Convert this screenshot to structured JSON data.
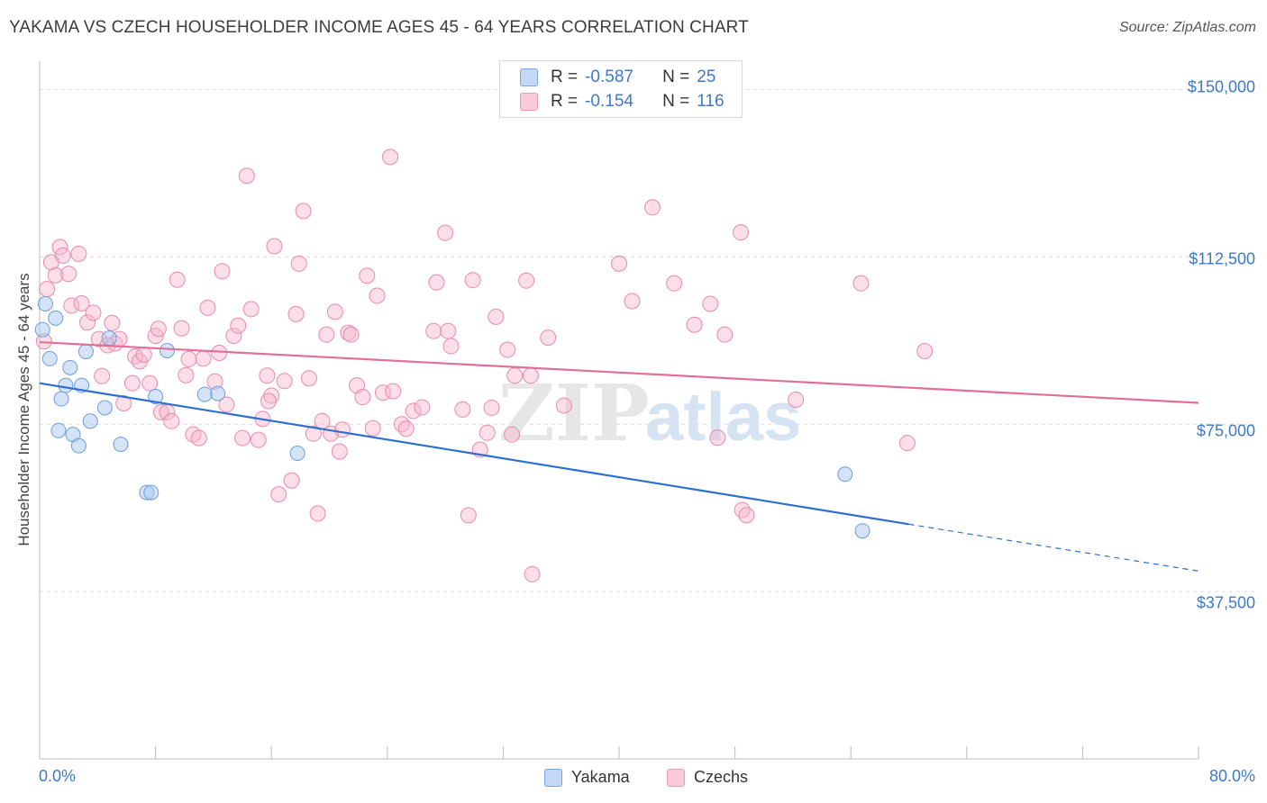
{
  "header": {
    "title": "YAKAMA VS CZECH HOUSEHOLDER INCOME AGES 45 - 64 YEARS CORRELATION CHART",
    "source": "Source: ZipAtlas.com"
  },
  "watermark": {
    "zip": "ZIP",
    "atlas": "atlas"
  },
  "legend_top": {
    "rows": [
      {
        "r_label": "R =",
        "r_value": "-0.587",
        "n_label": "N =",
        "n_value": "25"
      },
      {
        "r_label": "R =",
        "r_value": "-0.154",
        "n_label": "N =",
        "n_value": "116"
      }
    ]
  },
  "legend_bottom": {
    "items": [
      "Yakama",
      "Czechs"
    ]
  },
  "colors": {
    "yakama_fill": "#a9c8ef",
    "yakama_stroke": "#6c9fdb",
    "yakama_line": "#2b6fd0",
    "czech_fill": "#f6b6cb",
    "czech_stroke": "#e98aab",
    "czech_line": "#e0709a",
    "tick_text": "#3e7ac8",
    "grid": "#dcdcdc"
  },
  "chart_data": {
    "type": "scatter",
    "title": "YAKAMA VS CZECH HOUSEHOLDER INCOME AGES 45 - 64 YEARS CORRELATION CHART",
    "xlabel": "",
    "ylabel": "Householder Income Ages 45 - 64 years",
    "xlim": [
      0,
      80
    ],
    "ylim": [
      0,
      160000
    ],
    "x_tick_labels": [
      "0.0%",
      "80.0%"
    ],
    "y_ticks": [
      37500,
      75000,
      112500,
      150000
    ],
    "y_tick_labels": [
      "$37,500",
      "$75,000",
      "$112,500",
      "$150,000"
    ],
    "grid": true,
    "legend": "top-center",
    "series": [
      {
        "name": "Yakama",
        "r": -0.587,
        "n": 25,
        "trend": {
          "x0": 0,
          "y0": 84200,
          "x1": 60,
          "y1": 52600,
          "dash_to_x": 80,
          "dash_to_y": 42100
        },
        "points": [
          [
            0.2,
            96200
          ],
          [
            0.4,
            102000
          ],
          [
            0.7,
            89700
          ],
          [
            1.1,
            98800
          ],
          [
            1.3,
            73600
          ],
          [
            1.5,
            80700
          ],
          [
            1.8,
            83700
          ],
          [
            2.1,
            87700
          ],
          [
            2.3,
            72700
          ],
          [
            2.7,
            70200
          ],
          [
            2.9,
            83700
          ],
          [
            3.2,
            91300
          ],
          [
            3.5,
            75700
          ],
          [
            4.5,
            78700
          ],
          [
            4.8,
            94300
          ],
          [
            5.6,
            70500
          ],
          [
            7.4,
            59700
          ],
          [
            7.7,
            59700
          ],
          [
            8.0,
            81200
          ],
          [
            8.8,
            91500
          ],
          [
            11.4,
            81700
          ],
          [
            12.3,
            81900
          ],
          [
            17.8,
            68500
          ],
          [
            55.6,
            63800
          ],
          [
            56.8,
            51100
          ]
        ]
      },
      {
        "name": "Czechs",
        "r": -0.154,
        "n": 116,
        "trend": {
          "x0": 0,
          "y0": 93400,
          "x1": 80,
          "y1": 79800
        },
        "points": [
          [
            0.3,
            93600
          ],
          [
            0.5,
            105300
          ],
          [
            0.8,
            111300
          ],
          [
            1.1,
            108400
          ],
          [
            1.4,
            114700
          ],
          [
            1.6,
            112800
          ],
          [
            2.0,
            108700
          ],
          [
            2.7,
            113200
          ],
          [
            2.2,
            101600
          ],
          [
            2.9,
            102100
          ],
          [
            3.3,
            97800
          ],
          [
            3.7,
            100000
          ],
          [
            4.1,
            94100
          ],
          [
            4.3,
            85800
          ],
          [
            4.7,
            92700
          ],
          [
            5.0,
            97700
          ],
          [
            5.2,
            93100
          ],
          [
            5.5,
            94100
          ],
          [
            5.8,
            79700
          ],
          [
            6.4,
            84200
          ],
          [
            6.6,
            90200
          ],
          [
            6.9,
            89100
          ],
          [
            7.2,
            90600
          ],
          [
            7.6,
            84200
          ],
          [
            8.0,
            94800
          ],
          [
            8.2,
            96400
          ],
          [
            8.4,
            77700
          ],
          [
            8.8,
            77700
          ],
          [
            9.1,
            75700
          ],
          [
            9.5,
            107400
          ],
          [
            9.8,
            96500
          ],
          [
            10.1,
            86000
          ],
          [
            10.3,
            89600
          ],
          [
            10.6,
            72700
          ],
          [
            11.0,
            71900
          ],
          [
            11.3,
            89700
          ],
          [
            11.6,
            101100
          ],
          [
            12.1,
            84600
          ],
          [
            12.4,
            91000
          ],
          [
            12.6,
            109300
          ],
          [
            12.9,
            79400
          ],
          [
            13.4,
            94800
          ],
          [
            13.7,
            97100
          ],
          [
            14.0,
            71900
          ],
          [
            14.3,
            130700
          ],
          [
            14.6,
            100800
          ],
          [
            15.1,
            71500
          ],
          [
            15.4,
            76200
          ],
          [
            15.7,
            85900
          ],
          [
            16.0,
            81400
          ],
          [
            16.2,
            114900
          ],
          [
            16.5,
            59300
          ],
          [
            16.9,
            84700
          ],
          [
            17.4,
            62400
          ],
          [
            17.7,
            99700
          ],
          [
            17.9,
            111000
          ],
          [
            18.2,
            122800
          ],
          [
            18.6,
            85300
          ],
          [
            18.9,
            72900
          ],
          [
            19.2,
            55000
          ],
          [
            19.5,
            75700
          ],
          [
            19.8,
            95100
          ],
          [
            20.1,
            72900
          ],
          [
            20.4,
            100200
          ],
          [
            20.7,
            68900
          ],
          [
            20.9,
            73800
          ],
          [
            21.3,
            95500
          ],
          [
            21.5,
            95100
          ],
          [
            21.9,
            83700
          ],
          [
            22.3,
            81100
          ],
          [
            22.6,
            108300
          ],
          [
            23.0,
            74100
          ],
          [
            23.3,
            103800
          ],
          [
            23.7,
            82100
          ],
          [
            24.2,
            134900
          ],
          [
            24.4,
            82400
          ],
          [
            25.0,
            75000
          ],
          [
            25.3,
            74000
          ],
          [
            25.8,
            78000
          ],
          [
            26.4,
            78800
          ],
          [
            27.2,
            95900
          ],
          [
            27.4,
            106800
          ],
          [
            28.0,
            117900
          ],
          [
            28.2,
            95900
          ],
          [
            28.4,
            92500
          ],
          [
            29.2,
            78300
          ],
          [
            29.9,
            107300
          ],
          [
            30.4,
            69300
          ],
          [
            31.2,
            78700
          ],
          [
            30.9,
            73100
          ],
          [
            31.5,
            99100
          ],
          [
            32.3,
            91700
          ],
          [
            32.6,
            72700
          ],
          [
            32.8,
            85900
          ],
          [
            33.6,
            107200
          ],
          [
            34.0,
            41400
          ],
          [
            33.9,
            85900
          ],
          [
            35.1,
            94400
          ],
          [
            36.2,
            79200
          ],
          [
            40.0,
            111000
          ],
          [
            40.9,
            102600
          ],
          [
            42.3,
            123600
          ],
          [
            43.8,
            106600
          ],
          [
            45.2,
            97300
          ],
          [
            46.3,
            102000
          ],
          [
            46.8,
            72000
          ],
          [
            47.3,
            95100
          ],
          [
            48.4,
            118000
          ],
          [
            48.5,
            55800
          ],
          [
            48.8,
            54600
          ],
          [
            52.2,
            80500
          ],
          [
            56.7,
            106600
          ],
          [
            59.9,
            70800
          ],
          [
            61.1,
            91400
          ],
          [
            29.6,
            54600
          ],
          [
            15.8,
            80200
          ]
        ]
      }
    ]
  }
}
